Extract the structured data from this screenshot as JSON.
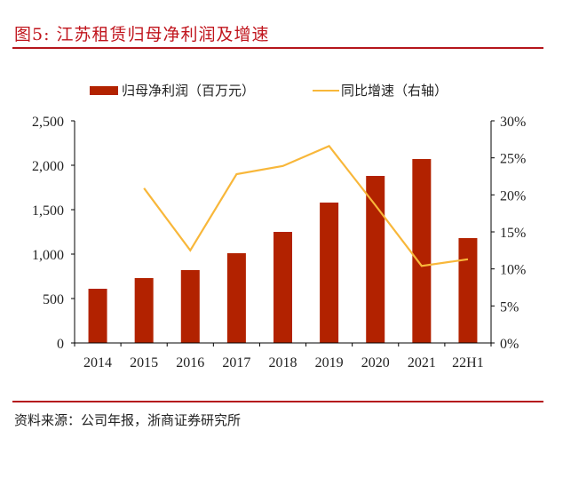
{
  "title": "图5:   江苏租赁归母净利润及增速",
  "source": "资料来源：公司年报，浙商证券研究所",
  "colors": {
    "bar": "#b22200",
    "line": "#f8b73a",
    "rule": "#b5161c",
    "title": "#c0141c"
  },
  "chart_data": {
    "type": "bar+line",
    "categories": [
      "2014",
      "2015",
      "2016",
      "2017",
      "2018",
      "2019",
      "2020",
      "2021",
      "22H1"
    ],
    "series": [
      {
        "name": "归母净利润（百万元）",
        "type": "bar",
        "axis": "left",
        "values": [
          610,
          730,
          820,
          1010,
          1250,
          1580,
          1880,
          2070,
          1180
        ]
      },
      {
        "name": "同比增速（右轴）",
        "type": "line",
        "axis": "right",
        "values": [
          null,
          20.9,
          12.5,
          22.8,
          23.9,
          26.6,
          18.6,
          10.4,
          11.3
        ]
      }
    ],
    "y_left": {
      "range": [
        0,
        2500
      ],
      "ticks": [
        "0",
        "500",
        "1,000",
        "1,500",
        "2,000",
        "2,500"
      ]
    },
    "y_right": {
      "range": [
        0,
        30
      ],
      "ticks": [
        "0%",
        "5%",
        "10%",
        "15%",
        "20%",
        "25%",
        "30%"
      ]
    },
    "legend_position": "top",
    "grid": false
  }
}
